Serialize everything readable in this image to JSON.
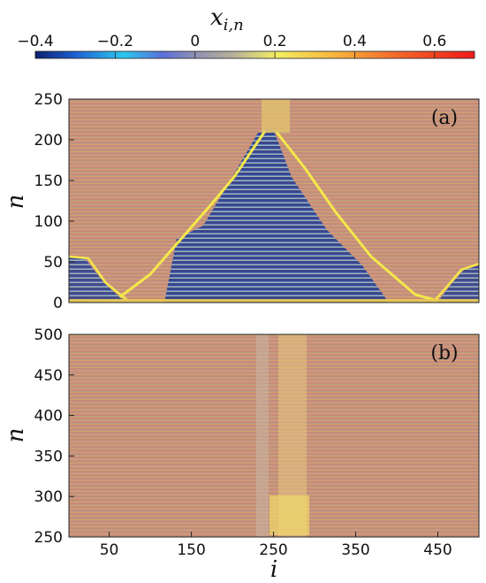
{
  "colorbar": {
    "label_main": "x",
    "label_sub": "i,n",
    "ticks": [
      "−0.4",
      "−0.2",
      "0",
      "0.2",
      "0.4",
      "0.6"
    ],
    "tick_values": [
      -0.4,
      -0.2,
      0,
      0.2,
      0.4,
      0.6
    ],
    "range": [
      -0.4,
      0.7
    ]
  },
  "chart_data": [
    {
      "type": "heatmap",
      "panel_label": "(a)",
      "ylabel": "n",
      "xlabel": "",
      "xlim": [
        1,
        500
      ],
      "ylim": [
        0,
        250
      ],
      "y_ticks": [
        "0",
        "50",
        "100",
        "150",
        "200",
        "250"
      ],
      "y_tick_values": [
        0,
        50,
        100,
        150,
        200,
        250
      ],
      "description_values": {
        "background_value": 0.1,
        "front_value": 0.5,
        "interior_values": [
          -0.35,
          0.05
        ],
        "triangle_apex": {
          "i": 270,
          "n": 205
        },
        "triangle_base": {
          "i_start": 110,
          "i_end": 440,
          "n": 0
        }
      }
    },
    {
      "type": "heatmap",
      "panel_label": "(b)",
      "ylabel": "n",
      "xlabel": "i",
      "xlim": [
        1,
        500
      ],
      "ylim": [
        250,
        500
      ],
      "y_ticks": [
        "250",
        "300",
        "350",
        "400",
        "450",
        "500"
      ],
      "y_tick_values": [
        250,
        300,
        350,
        400,
        450,
        500
      ],
      "x_ticks": [
        "50",
        "150",
        "250",
        "350",
        "450"
      ],
      "x_tick_values": [
        50,
        150,
        250,
        350,
        450
      ],
      "description_values": {
        "background_value": 0.1,
        "column_band": {
          "i_start": 255,
          "i_end": 285
        }
      }
    }
  ]
}
